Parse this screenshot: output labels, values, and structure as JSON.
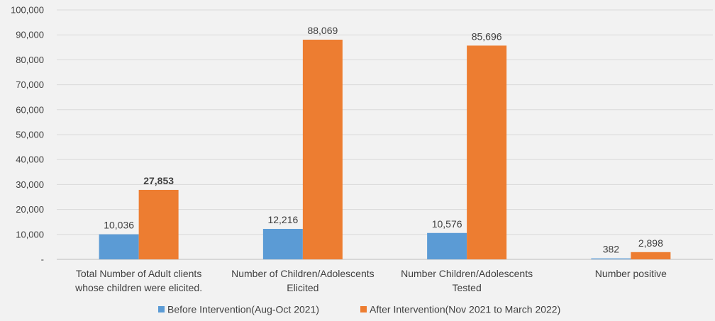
{
  "chart_data": {
    "type": "bar",
    "categories": [
      [
        "Total Number of Adult clients",
        "whose children were elicited."
      ],
      [
        "Number of Children/Adolescents",
        "Elicited"
      ],
      [
        "Number Children/Adolescents",
        "Tested"
      ],
      [
        "Number positive"
      ]
    ],
    "series": [
      {
        "name": "Before Intervention(Aug-Oct 2021)",
        "color": "#5b9bd5",
        "values": [
          10036,
          12216,
          10576,
          382
        ],
        "labels": [
          "10,036",
          "12,216",
          "10,576",
          "382"
        ],
        "bold": [
          false,
          false,
          false,
          false
        ]
      },
      {
        "name": "After Intervention(Nov 2021 to March 2022)",
        "color": "#ed7d31",
        "values": [
          27853,
          88069,
          85696,
          2898
        ],
        "labels": [
          "27,853",
          "88,069",
          "85,696",
          "2,898"
        ],
        "bold": [
          true,
          false,
          false,
          false
        ]
      }
    ],
    "yticks": [
      "-",
      "10,000",
      "20,000",
      "30,000",
      "40,000",
      "50,000",
      "60,000",
      "70,000",
      "80,000",
      "90,000",
      "100,000"
    ],
    "ylim": [
      0,
      100000
    ],
    "grid": true,
    "legend_position": "bottom"
  }
}
